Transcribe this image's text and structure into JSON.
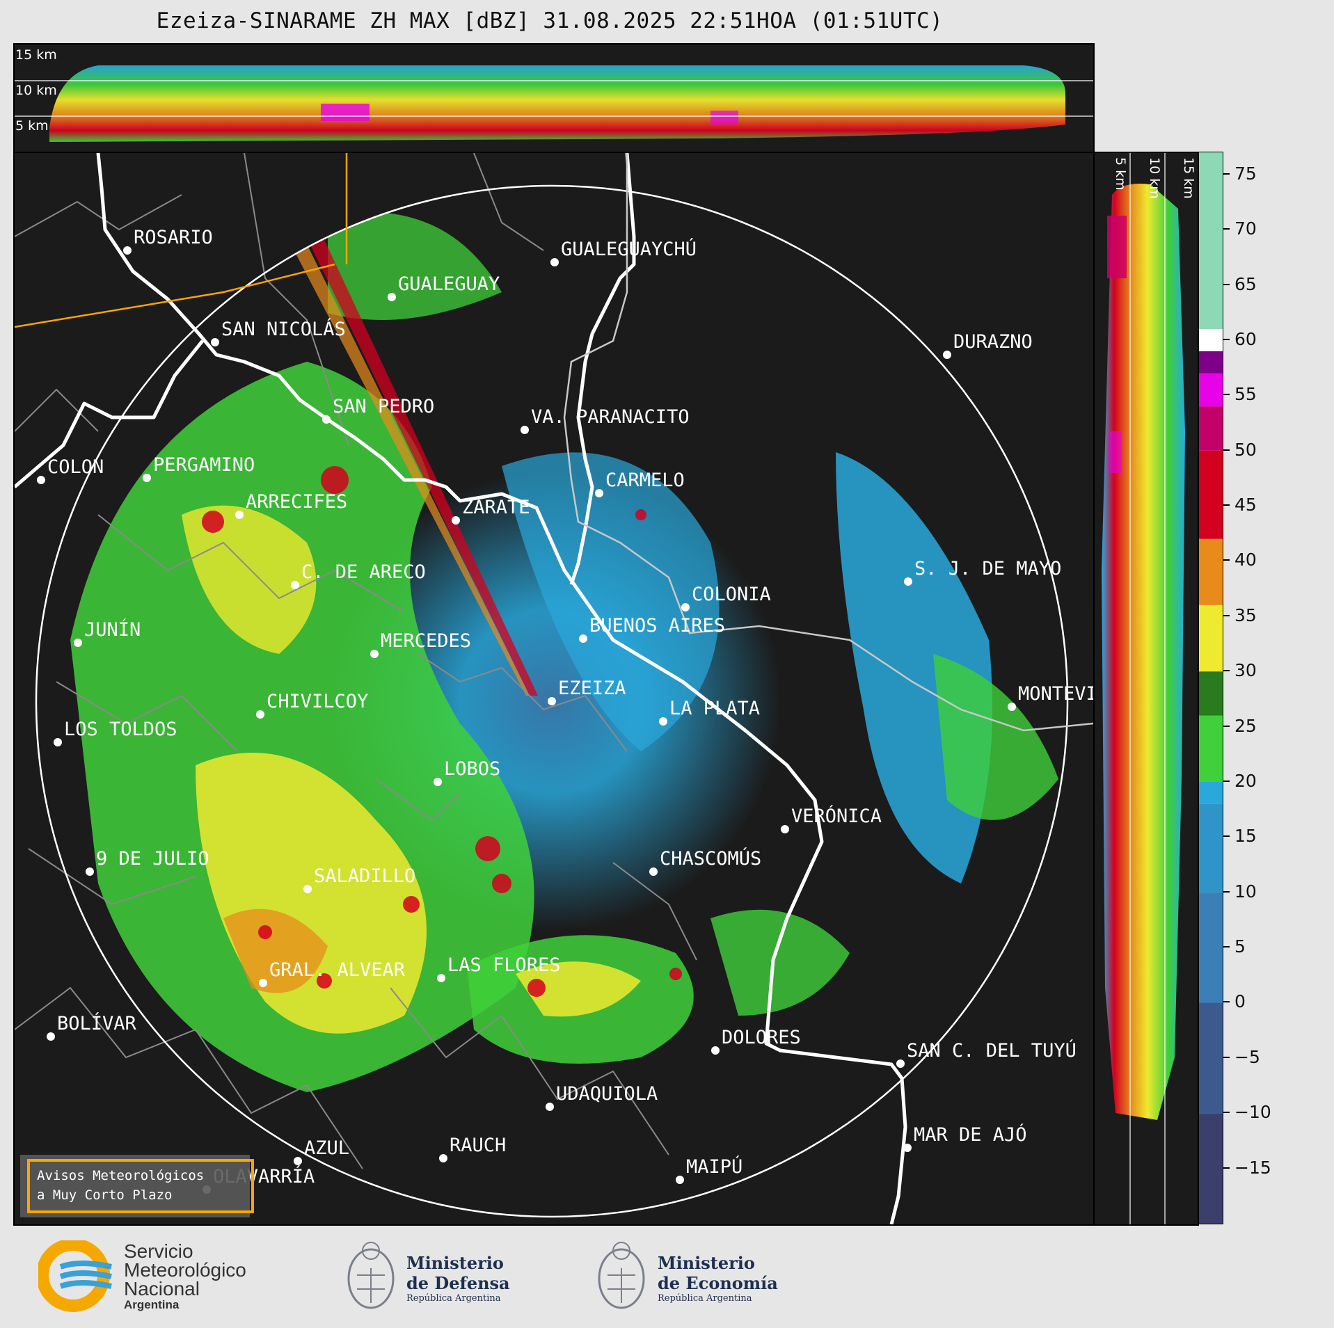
{
  "title": "Ezeiza-SINARAME ZH MAX [dBZ] 31.08.2025 22:51HOA (01:51UTC)",
  "top_panel": {
    "height_labels": [
      "15 km",
      "10 km",
      "5 km"
    ]
  },
  "side_panel": {
    "height_labels": [
      "5 km",
      "10 km",
      "15 km"
    ]
  },
  "colorbar": {
    "ticks": [
      "75",
      "70",
      "65",
      "60",
      "55",
      "50",
      "45",
      "40",
      "35",
      "30",
      "25",
      "20",
      "15",
      "10",
      "5",
      "0",
      "−5",
      "−10",
      "−15"
    ],
    "colors": {
      "neg": "#3b3f6b",
      "low_blue": "#3a7fb5",
      "light_blue": "#29a8dc",
      "green": "#3fd03a",
      "dark_green": "#2a7a1e",
      "yellow": "#eeea2f",
      "orange": "#e88b1b",
      "red": "#d4001f",
      "magenta": "#e800e8",
      "purple": "#7d0089",
      "white": "#ffffff",
      "mint": "#8ed9b5"
    }
  },
  "cities": [
    {
      "name": "ROSARIO"
    },
    {
      "name": "GUALEGUAYCHÚ"
    },
    {
      "name": "GUALEGUAY"
    },
    {
      "name": "SAN NICOLÁS"
    },
    {
      "name": "DURAZNO"
    },
    {
      "name": "SAN PEDRO"
    },
    {
      "name": "VA. PARANACITO"
    },
    {
      "name": "COLON"
    },
    {
      "name": "PERGAMINO"
    },
    {
      "name": "CARMELO"
    },
    {
      "name": "ARRECIFES"
    },
    {
      "name": "ZÁRATE"
    },
    {
      "name": "S. J. DE MAYO"
    },
    {
      "name": "C. DE ARECO"
    },
    {
      "name": "COLONIA"
    },
    {
      "name": "JUNÍN"
    },
    {
      "name": "BUENOS AIRES"
    },
    {
      "name": "MERCEDES"
    },
    {
      "name": "EZEIZA"
    },
    {
      "name": "MONTEVIDEO"
    },
    {
      "name": "CHIVILCOY"
    },
    {
      "name": "LA PLATA"
    },
    {
      "name": "LOS TOLDOS"
    },
    {
      "name": "LOBOS"
    },
    {
      "name": "VERÓNICA"
    },
    {
      "name": "9 DE JULIO"
    },
    {
      "name": "CHASCOMÚS"
    },
    {
      "name": "SALADILLO"
    },
    {
      "name": "GRAL. ALVEAR"
    },
    {
      "name": "LAS FLORES"
    },
    {
      "name": "BOLÍVAR"
    },
    {
      "name": "DOLORES"
    },
    {
      "name": "SAN C. DEL TUYÚ"
    },
    {
      "name": "UDAQUIOLA"
    },
    {
      "name": "MAR DE AJÓ"
    },
    {
      "name": "AZUL"
    },
    {
      "name": "RAUCH"
    },
    {
      "name": "OLAVARRÍA"
    },
    {
      "name": "MAIPÚ"
    }
  ],
  "notice_box": {
    "line1": "Avisos Meteorológicos",
    "line2": "a Muy Corto Plazo"
  },
  "logos": {
    "smn": {
      "line1": "Servicio",
      "line2": "Meteorológico",
      "line3": "Nacional",
      "line4": "Argentina"
    },
    "defensa": {
      "line1": "Ministerio",
      "line2": "de Defensa",
      "line3": "República Argentina"
    },
    "economia": {
      "line1": "Ministerio",
      "line2": "de Economía",
      "line3": "República Argentina"
    }
  }
}
